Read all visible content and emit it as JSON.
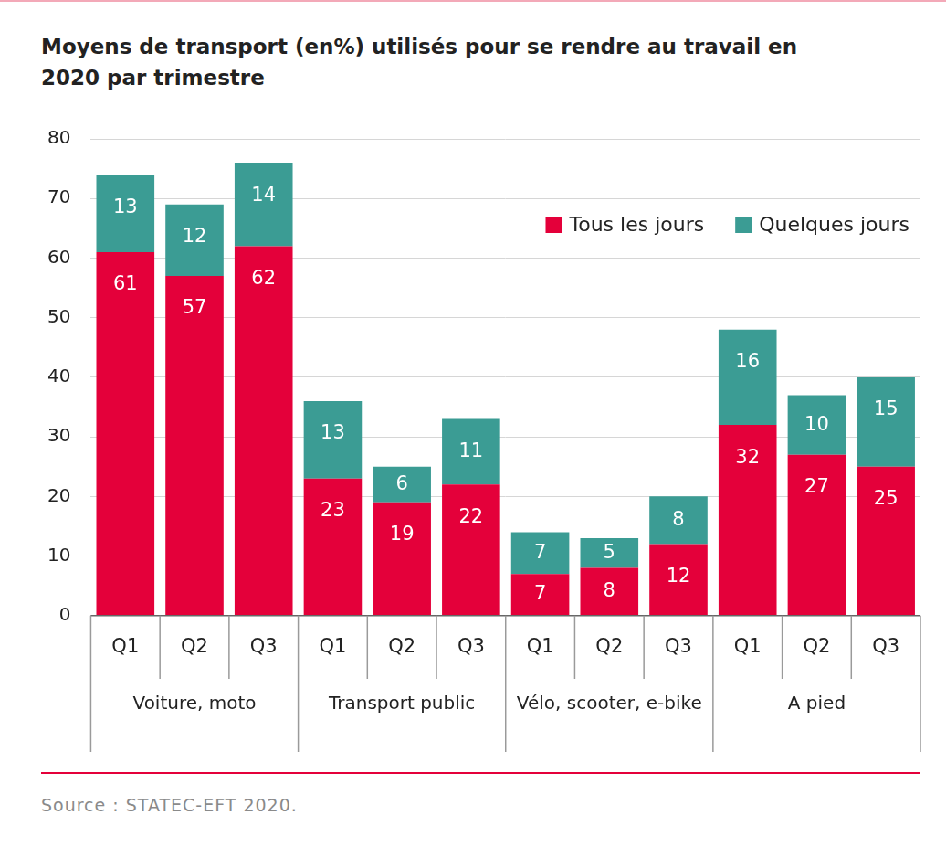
{
  "chart_data": {
    "type": "bar",
    "title": "Moyens de transport (en%) utilisés pour se rendre au travail en 2020 par trimestre",
    "source": "Source : STATEC-EFT 2020.",
    "groups": [
      {
        "label": "Voiture, moto",
        "categories": [
          "Q1",
          "Q2",
          "Q3"
        ]
      },
      {
        "label": "Transport public",
        "categories": [
          "Q1",
          "Q2",
          "Q3"
        ]
      },
      {
        "label": "Vélo, scooter, e-bike",
        "categories": [
          "Q1",
          "Q2",
          "Q3"
        ]
      },
      {
        "label": "A pied",
        "categories": [
          "Q1",
          "Q2",
          "Q3"
        ]
      }
    ],
    "series": [
      {
        "name": "Tous les jours",
        "color": "#e4003a",
        "values": [
          61,
          57,
          62,
          23,
          19,
          22,
          7,
          8,
          12,
          32,
          27,
          25
        ]
      },
      {
        "name": "Quelques jours",
        "color": "#3b9c94",
        "values": [
          13,
          12,
          14,
          13,
          6,
          11,
          7,
          5,
          8,
          16,
          10,
          15
        ]
      }
    ],
    "ylim": [
      0,
      80
    ],
    "yticks": [
      0,
      10,
      20,
      30,
      40,
      50,
      60,
      70,
      80
    ],
    "stacked": true,
    "grid": true,
    "data_labels": true,
    "legend": "upper right"
  }
}
